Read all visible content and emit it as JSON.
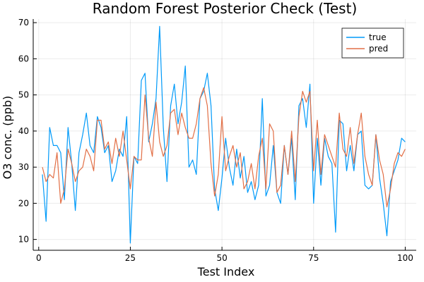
{
  "chart_data": {
    "type": "line",
    "title": "Random Forest Posterior Check (Test)",
    "xlabel": "Test Index",
    "ylabel": "O3 conc. (ppb)",
    "xlim": [
      -1.5,
      103
    ],
    "ylim": [
      7,
      71
    ],
    "xticks": [
      0,
      25,
      50,
      75,
      100
    ],
    "yticks": [
      10,
      20,
      30,
      40,
      50,
      60,
      70
    ],
    "grid": true,
    "legend_position": "top-right",
    "x": [
      1,
      2,
      3,
      4,
      5,
      6,
      7,
      8,
      9,
      10,
      11,
      12,
      13,
      14,
      15,
      16,
      17,
      18,
      19,
      20,
      21,
      22,
      23,
      24,
      25,
      26,
      27,
      28,
      29,
      30,
      31,
      32,
      33,
      34,
      35,
      36,
      37,
      38,
      39,
      40,
      41,
      42,
      43,
      44,
      45,
      46,
      47,
      48,
      49,
      50,
      51,
      52,
      53,
      54,
      55,
      56,
      57,
      58,
      59,
      60,
      61,
      62,
      63,
      64,
      65,
      66,
      67,
      68,
      69,
      70,
      71,
      72,
      73,
      74,
      75,
      76,
      77,
      78,
      79,
      80,
      81,
      82,
      83,
      84,
      85,
      86,
      87,
      88,
      89,
      90,
      91,
      92,
      93,
      94,
      95,
      96,
      97,
      98,
      99,
      100
    ],
    "series": [
      {
        "name": "true",
        "color": "#009af9",
        "values": [
          28,
          15,
          41,
          36,
          36,
          34,
          21,
          41,
          31,
          18,
          34,
          39,
          45,
          36,
          34,
          44,
          41,
          34,
          36,
          26,
          29,
          35,
          33,
          44,
          9,
          33,
          31,
          54,
          56,
          37,
          42,
          49,
          69,
          41,
          26,
          47,
          53,
          42,
          48,
          58,
          30,
          32,
          28,
          49,
          51,
          56,
          47,
          24,
          18,
          27,
          38,
          30,
          25,
          35,
          27,
          33,
          23,
          26,
          21,
          25,
          49,
          22,
          25,
          36,
          23,
          20,
          36,
          28,
          38,
          21,
          47,
          49,
          41,
          53,
          20,
          38,
          25,
          38,
          33,
          31,
          12,
          43,
          42,
          29,
          36,
          29,
          39,
          40,
          25,
          24,
          25,
          39,
          27,
          20,
          11,
          26,
          29,
          32,
          38,
          37
        ]
      },
      {
        "name": "pred",
        "color": "#e26f46",
        "values": [
          30,
          26,
          28,
          27,
          34,
          20,
          24,
          35,
          31,
          26,
          29,
          30,
          35,
          33,
          29,
          43,
          43,
          35,
          37,
          31,
          38,
          33,
          40,
          32,
          24,
          33,
          32,
          32,
          50,
          38,
          33,
          48,
          37,
          33,
          36,
          45,
          46,
          39,
          45,
          41,
          38,
          38,
          42,
          49,
          52,
          47,
          31,
          22,
          28,
          44,
          29,
          33,
          36,
          30,
          34,
          24,
          26,
          31,
          24,
          33,
          38,
          24,
          42,
          40,
          23,
          25,
          36,
          28,
          40,
          26,
          44,
          51,
          48,
          51,
          29,
          43,
          28,
          39,
          36,
          33,
          30,
          45,
          35,
          33,
          41,
          31,
          39,
          45,
          33,
          28,
          25,
          39,
          32,
          28,
          19,
          24,
          31,
          34,
          33,
          35
        ]
      }
    ]
  }
}
